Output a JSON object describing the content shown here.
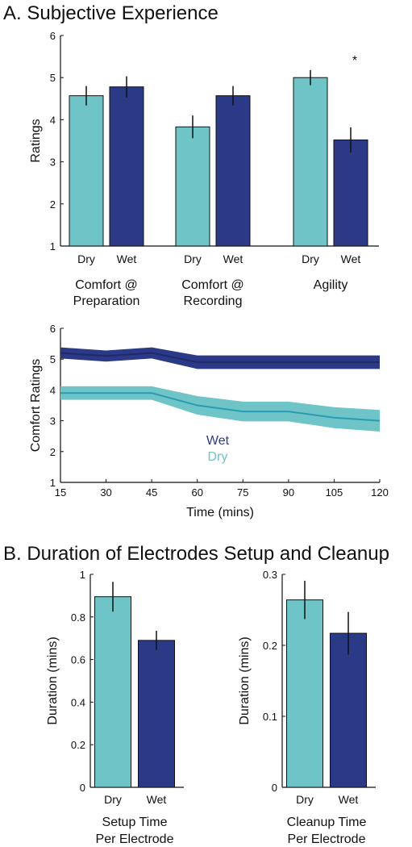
{
  "section_a": {
    "title": "A. Subjective Experience"
  },
  "section_b": {
    "title": "B. Duration of Electrodes Setup and Cleanup"
  },
  "colors": {
    "dry": "#6ec4c6",
    "wet": "#2b3a86",
    "dry_line": "#2a9bb3",
    "wet_line": "#1f2a6e"
  },
  "chart_data": [
    {
      "id": "subjective_ratings",
      "type": "bar",
      "ylabel": "Ratings",
      "ylim": [
        1,
        6
      ],
      "yticks": [
        1,
        2,
        3,
        4,
        5,
        6
      ],
      "groups": [
        {
          "label_lines": [
            "Comfort @",
            "Preparation"
          ],
          "bars": [
            {
              "category": "Dry",
              "value": 4.57,
              "err": 0.23
            },
            {
              "category": "Wet",
              "value": 4.78,
              "err": 0.25
            }
          ]
        },
        {
          "label_lines": [
            "Comfort @",
            "Recording"
          ],
          "bars": [
            {
              "category": "Dry",
              "value": 3.83,
              "err": 0.27
            },
            {
              "category": "Wet",
              "value": 4.57,
              "err": 0.23
            }
          ]
        },
        {
          "label_lines": [
            "Agility"
          ],
          "annotation": "*",
          "bars": [
            {
              "category": "Dry",
              "value": 5.0,
              "err": 0.18
            },
            {
              "category": "Wet",
              "value": 3.52,
              "err": 0.3
            }
          ]
        }
      ]
    },
    {
      "id": "comfort_over_time",
      "type": "line",
      "xlabel": "Time (mins)",
      "ylabel": "Comfort Ratings",
      "xlim": [
        15,
        120
      ],
      "ylim": [
        1,
        6
      ],
      "xticks": [
        15,
        30,
        45,
        60,
        75,
        90,
        105,
        120
      ],
      "yticks": [
        1,
        2,
        3,
        4,
        5,
        6
      ],
      "x": [
        15,
        30,
        45,
        60,
        75,
        90,
        105,
        120
      ],
      "series": [
        {
          "name": "Wet",
          "values": [
            5.2,
            5.1,
            5.2,
            4.9,
            4.9,
            4.9,
            4.9,
            4.9
          ],
          "err": [
            0.18,
            0.18,
            0.18,
            0.22,
            0.22,
            0.22,
            0.22,
            0.22
          ]
        },
        {
          "name": "Dry",
          "values": [
            3.9,
            3.9,
            3.9,
            3.5,
            3.3,
            3.3,
            3.1,
            3.0
          ],
          "err": [
            0.22,
            0.22,
            0.22,
            0.3,
            0.32,
            0.32,
            0.34,
            0.35
          ]
        }
      ],
      "legend_position": "center"
    },
    {
      "id": "setup_time",
      "type": "bar",
      "ylabel": "Duration (mins)",
      "ylim": [
        0,
        1
      ],
      "yticks": [
        "0",
        "0.2",
        "0.4",
        "0.6",
        "0.8",
        "1"
      ],
      "group_label_lines": [
        "Setup Time",
        "Per Electrode"
      ],
      "bars": [
        {
          "category": "Dry",
          "value": 0.895,
          "err": 0.07
        },
        {
          "category": "Wet",
          "value": 0.69,
          "err": 0.045
        }
      ]
    },
    {
      "id": "cleanup_time",
      "type": "bar",
      "ylabel": "Duration (mins)",
      "ylim": [
        0,
        0.3
      ],
      "yticks": [
        "0",
        "0.1",
        "0.2",
        "0.3"
      ],
      "group_label_lines": [
        "Cleanup Time",
        "Per Electrode"
      ],
      "bars": [
        {
          "category": "Dry",
          "value": 0.264,
          "err": 0.027
        },
        {
          "category": "Wet",
          "value": 0.217,
          "err": 0.03
        }
      ]
    }
  ]
}
